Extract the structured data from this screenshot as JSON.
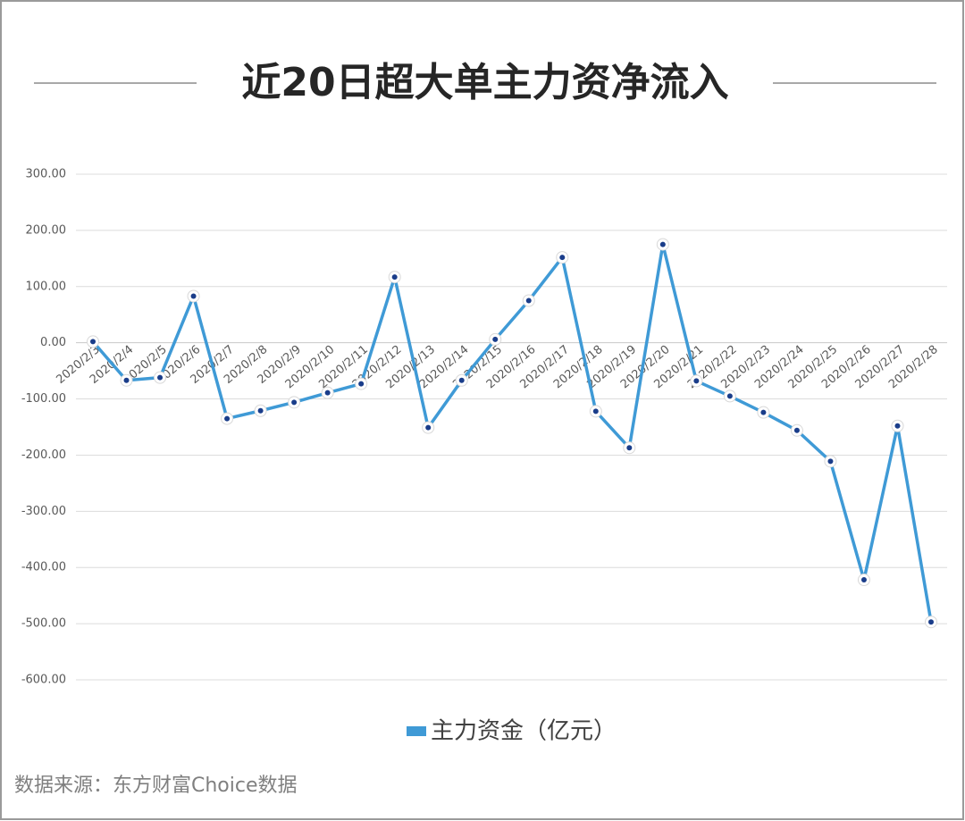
{
  "chart_data": {
    "type": "line",
    "title": "近20日超大单主力资净流入",
    "source": "数据来源：东方财富Choice数据",
    "categories": [
      "2020/2/3",
      "2020/2/4",
      "2020/2/5",
      "2020/2/6",
      "2020/2/7",
      "2020/2/8",
      "2020/2/9",
      "2020/2/10",
      "2020/2/11",
      "2020/2/12",
      "2020/2/13",
      "2020/2/14",
      "2020/2/15",
      "2020/2/16",
      "2020/2/17",
      "2020/2/18",
      "2020/2/19",
      "2020/2/20",
      "2020/2/21",
      "2020/2/22",
      "2020/2/23",
      "2020/2/24",
      "2020/2/25",
      "2020/2/26",
      "2020/2/27",
      "2020/2/28"
    ],
    "series": [
      {
        "name": "主力资金（亿元）",
        "color": "#3f9ad6",
        "values": [
          2,
          -67,
          -62,
          83,
          -135,
          -121,
          -106,
          -89,
          -73,
          117,
          -151,
          -67,
          6,
          75,
          152,
          -122,
          -187,
          175,
          -68,
          -95,
          -124,
          -156,
          -211,
          -422,
          -148,
          -497
        ]
      }
    ],
    "ylim": [
      -600,
      300
    ],
    "yticks": [
      {
        "value": -600,
        "label": "-600.00"
      },
      {
        "value": -500,
        "label": "-500.00"
      },
      {
        "value": -400,
        "label": "-400.00"
      },
      {
        "value": -300,
        "label": "-300.00"
      },
      {
        "value": -200,
        "label": "-200.00"
      },
      {
        "value": -100,
        "label": "-100.00"
      },
      {
        "value": 0,
        "label": "0.00"
      },
      {
        "value": 100,
        "label": "100.00"
      },
      {
        "value": 200,
        "label": "200.00"
      },
      {
        "value": 300,
        "label": "300.00"
      }
    ],
    "grid": true,
    "legend": "bottom"
  }
}
